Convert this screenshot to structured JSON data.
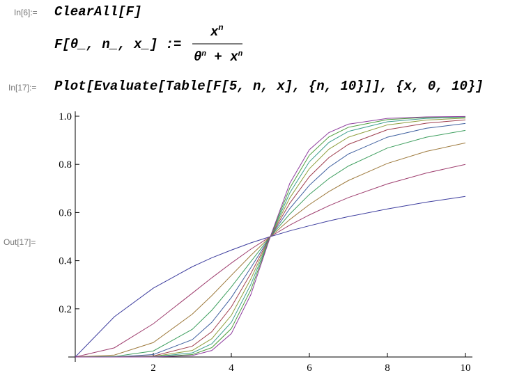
{
  "cells": [
    {
      "label": "In[6]:=",
      "lines": [
        "ClearAll[F]"
      ]
    },
    {
      "definition": "F[θ_, n_, x_] := ",
      "numerator": {
        "base": "x",
        "exp": "n"
      },
      "denominator": {
        "base1": "θ",
        "exp1": "n",
        "plus": " + x",
        "exp2": "n"
      }
    },
    {
      "label": "In[17]:=",
      "lines": [
        "Plot[Evaluate[Table[F[5, n, x], {n, 10}]], {x, 0, 10}]"
      ]
    },
    {
      "label": "Out[17]="
    }
  ],
  "chart_data": {
    "type": "line",
    "x": [
      0,
      1,
      2,
      3,
      3.5,
      4,
      4.5,
      5,
      5.5,
      6,
      6.5,
      7,
      8,
      9,
      10
    ],
    "xlim": [
      0,
      10
    ],
    "ylim": [
      0,
      1
    ],
    "xticks": [
      2,
      4,
      6,
      8,
      10
    ],
    "yticks": [
      0.2,
      0.4,
      0.6,
      0.8,
      {
        "value": 1,
        "label": "1.0"
      }
    ],
    "series": [
      {
        "color": "#3d3d9e",
        "values": [
          0,
          0.167,
          0.286,
          0.375,
          0.412,
          0.444,
          0.474,
          0.5,
          0.524,
          0.545,
          0.565,
          0.583,
          0.615,
          0.643,
          0.667
        ]
      },
      {
        "color": "#9e3d6e",
        "values": [
          0,
          0.038,
          0.138,
          0.265,
          0.329,
          0.39,
          0.448,
          0.5,
          0.548,
          0.59,
          0.628,
          0.662,
          0.719,
          0.764,
          0.8
        ]
      },
      {
        "color": "#9e7a3d",
        "values": [
          0,
          0.008,
          0.06,
          0.178,
          0.255,
          0.339,
          0.422,
          0.5,
          0.571,
          0.633,
          0.687,
          0.733,
          0.804,
          0.854,
          0.889
        ]
      },
      {
        "color": "#3d9e5e",
        "values": [
          0,
          0.002,
          0.025,
          0.115,
          0.194,
          0.291,
          0.396,
          0.5,
          0.594,
          0.675,
          0.741,
          0.793,
          0.868,
          0.913,
          0.941
        ]
      },
      {
        "color": "#3d5e9e",
        "values": [
          0,
          0,
          0.01,
          0.072,
          0.144,
          0.247,
          0.371,
          0.5,
          0.617,
          0.713,
          0.788,
          0.843,
          0.913,
          0.95,
          0.97
        ]
      },
      {
        "color": "#9e3d4d",
        "values": [
          0,
          0,
          0.004,
          0.045,
          0.105,
          0.208,
          0.347,
          0.5,
          0.639,
          0.749,
          0.828,
          0.883,
          0.944,
          0.971,
          0.985
        ]
      },
      {
        "color": "#8e9e3d",
        "values": [
          0,
          0,
          0.002,
          0.027,
          0.076,
          0.173,
          0.324,
          0.5,
          0.661,
          0.782,
          0.863,
          0.913,
          0.964,
          0.984,
          0.992
        ]
      },
      {
        "color": "#3d9e8e",
        "values": [
          0,
          0,
          0.001,
          0.017,
          0.055,
          0.144,
          0.301,
          0.5,
          0.682,
          0.811,
          0.891,
          0.937,
          0.977,
          0.991,
          0.996
        ]
      },
      {
        "color": "#4d9e3d",
        "values": [
          0,
          0,
          0,
          0.01,
          0.039,
          0.118,
          0.279,
          0.5,
          0.702,
          0.838,
          0.914,
          0.954,
          0.986,
          0.995,
          0.998
        ]
      },
      {
        "color": "#8e3d9e",
        "values": [
          0,
          0,
          0,
          0.006,
          0.027,
          0.097,
          0.259,
          0.5,
          0.722,
          0.861,
          0.932,
          0.967,
          0.991,
          0.997,
          0.999
        ]
      }
    ]
  }
}
